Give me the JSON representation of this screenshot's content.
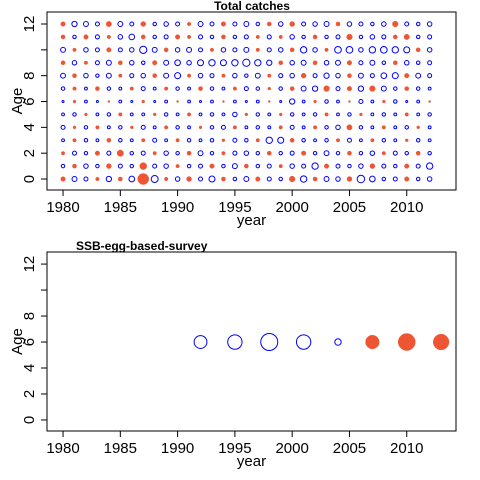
{
  "chart_data": [
    {
      "type": "bubble",
      "title": "Total catches",
      "xlabel": "year",
      "ylabel": "Age",
      "x": [
        1980,
        1981,
        1982,
        1983,
        1984,
        1985,
        1986,
        1987,
        1988,
        1989,
        1990,
        1991,
        1992,
        1993,
        1994,
        1995,
        1996,
        1997,
        1998,
        1999,
        2000,
        2001,
        2002,
        2003,
        2004,
        2005,
        2006,
        2007,
        2008,
        2009,
        2010,
        2011,
        2012
      ],
      "y": [
        0,
        1,
        2,
        3,
        4,
        5,
        6,
        7,
        8,
        9,
        10,
        11,
        12
      ],
      "values": [
        [
          -0.5,
          0.6,
          0.4,
          -0.3,
          0.7,
          -0.4,
          0.8,
          -3.0,
          1.2,
          -0.3,
          0.5,
          -0.6,
          0.4,
          0.9,
          -0.4,
          0.3,
          0.6,
          -0.5,
          0.4,
          0.3,
          -0.8,
          1.0,
          -0.4,
          0.6,
          0.5,
          -0.6,
          1.4,
          0.8,
          0.3,
          0.4,
          -0.5,
          0.3,
          0.5
        ],
        [
          0.3,
          -0.4,
          0.5,
          0.3,
          -0.6,
          0.4,
          0.3,
          -1.2,
          0.4,
          0.5,
          -0.3,
          0.3,
          0.4,
          -0.5,
          0.3,
          0.6,
          -0.4,
          0.3,
          0.4,
          -0.3,
          0.5,
          0.4,
          1.0,
          -0.5,
          0.4,
          0.3,
          0.5,
          -0.6,
          0.4,
          0.3,
          -0.5,
          0.4,
          1.0
        ],
        [
          -0.3,
          0.4,
          0.3,
          -0.5,
          0.4,
          -1.0,
          0.3,
          0.4,
          -0.3,
          0.5,
          0.3,
          -0.4,
          0.6,
          0.3,
          -0.3,
          0.4,
          0.5,
          0.3,
          -0.4,
          0.3,
          0.4,
          -0.5,
          0.3,
          0.6,
          0.3,
          -0.4,
          0.3,
          0.5,
          -0.3,
          0.4,
          0.3,
          -0.4,
          0.3
        ],
        [
          0.2,
          -0.3,
          0.3,
          0.2,
          -0.4,
          0.3,
          0.2,
          -0.3,
          0.4,
          0.2,
          -0.3,
          0.3,
          0.2,
          0.3,
          -0.2,
          0.4,
          0.3,
          -0.3,
          1.0,
          0.9,
          -0.4,
          0.3,
          0.2,
          0.3,
          -0.3,
          0.4,
          0.2,
          -0.3,
          0.3,
          0.2,
          -0.2,
          0.3,
          0.2
        ],
        [
          0.4,
          -0.2,
          0.3,
          -0.3,
          0.2,
          0.3,
          -0.2,
          0.4,
          0.2,
          -0.3,
          0.3,
          0.2,
          -0.2,
          0.3,
          0.4,
          -0.3,
          0.2,
          0.3,
          0.2,
          -0.3,
          0.4,
          0.2,
          -0.3,
          0.3,
          0.5,
          -0.7,
          0.3,
          0.2,
          -0.3,
          0.2,
          0.3,
          -0.2,
          0.2
        ],
        [
          0.2,
          0.3,
          -0.2,
          0.2,
          0.3,
          -0.3,
          0.2,
          0.2,
          -0.2,
          0.3,
          0.2,
          -0.3,
          0.2,
          0.3,
          0.2,
          0.5,
          -0.2,
          0.3,
          0.2,
          -0.2,
          0.3,
          0.2,
          0.3,
          -0.3,
          0.2,
          0.3,
          -0.2,
          0.2,
          0.3,
          0.2,
          -0.3,
          0.2,
          0.3
        ],
        [
          0.1,
          -0.2,
          0.2,
          0.1,
          -0.1,
          0.2,
          0.1,
          -0.2,
          0.1,
          0.2,
          -0.1,
          0.2,
          0.1,
          0.2,
          -0.1,
          0.2,
          0.1,
          0.2,
          -0.1,
          0.1,
          0.7,
          0.2,
          -0.2,
          0.3,
          0.2,
          -0.1,
          0.4,
          0.2,
          -0.2,
          0.3,
          0.1,
          0.2,
          -0.1
        ],
        [
          0.3,
          -0.3,
          0.2,
          -0.4,
          0.3,
          0.2,
          -0.3,
          0.4,
          0.2,
          -0.3,
          0.3,
          0.2,
          -0.4,
          0.3,
          0.2,
          -0.3,
          0.4,
          0.3,
          -0.2,
          0.3,
          -0.4,
          0.6,
          0.7,
          -0.8,
          0.4,
          -0.5,
          0.7,
          -0.8,
          0.6,
          0.3,
          -0.4,
          0.3,
          0.2
        ],
        [
          0.6,
          -0.4,
          0.5,
          0.3,
          0.6,
          -0.3,
          0.4,
          0.5,
          -0.4,
          0.6,
          0.9,
          -0.3,
          0.5,
          0.4,
          -0.3,
          0.5,
          0.3,
          0.6,
          -0.3,
          0.4,
          0.5,
          -0.6,
          0.4,
          0.7,
          0.5,
          -0.4,
          0.6,
          0.4,
          0.8,
          0.9,
          -0.5,
          0.6,
          0.4
        ],
        [
          -0.4,
          0.5,
          -0.3,
          0.4,
          0.6,
          -0.4,
          0.5,
          0.3,
          -0.5,
          0.6,
          0.8,
          0.5,
          0.9,
          1.0,
          0.9,
          1.0,
          1.3,
          1.0,
          0.7,
          -0.4,
          0.5,
          0.6,
          -0.4,
          0.5,
          0.6,
          -0.5,
          0.4,
          0.6,
          0.3,
          -0.4,
          0.5,
          0.3,
          0.4
        ],
        [
          0.6,
          -0.3,
          0.5,
          0.4,
          -0.5,
          0.4,
          0.5,
          1.3,
          0.6,
          -0.4,
          0.5,
          0.6,
          0.4,
          -0.3,
          0.5,
          0.4,
          0.6,
          -0.3,
          0.4,
          0.5,
          -0.4,
          1.0,
          0.5,
          -0.3,
          1.1,
          1.1,
          0.5,
          1.0,
          1.1,
          1.0,
          0.9,
          -0.4,
          0.5
        ],
        [
          -0.4,
          0.3,
          -0.5,
          0.4,
          -0.3,
          0.5,
          0.8,
          -0.4,
          0.3,
          0.4,
          -0.5,
          -0.3,
          0.4,
          0.3,
          -0.4,
          0.3,
          0.4,
          -0.3,
          0.4,
          -0.3,
          0.5,
          0.3,
          -0.4,
          0.3,
          0.4,
          -0.8,
          0.3,
          0.5,
          0.4,
          -0.4,
          -0.7,
          0.3,
          0.4
        ],
        [
          -0.5,
          0.7,
          0.6,
          0.4,
          -0.7,
          0.6,
          0.4,
          -0.6,
          0.3,
          0.5,
          0.4,
          -0.3,
          0.6,
          0.4,
          -0.5,
          0.4,
          0.6,
          0.3,
          -0.4,
          0.5,
          -0.6,
          0.4,
          0.5,
          0.6,
          -0.4,
          0.5,
          0.4,
          0.3,
          0.5,
          -0.8,
          0.4,
          0.3,
          0.5
        ]
      ],
      "colors": {
        "positive": "#0000ff",
        "negative": "#ee5533"
      },
      "xlim": [
        1978.6,
        2014.3
      ],
      "ylim": [
        -0.85,
        12.93
      ],
      "xticks": [
        1980,
        1985,
        1990,
        1995,
        2000,
        2005,
        2010
      ],
      "yticks": [
        0,
        2,
        4,
        6,
        8,
        12
      ],
      "yticks_unlabeled": [
        10
      ]
    },
    {
      "type": "bubble",
      "title": "SSB-egg-based-survey",
      "xlabel": "year",
      "ylabel": "Age",
      "x": [
        1992,
        1995,
        1998,
        2001,
        2004,
        2007,
        2010,
        2013
      ],
      "y": [
        6
      ],
      "values": [
        [
          0.8,
          1.0,
          1.4,
          1.0,
          0.2,
          -0.9,
          -1.4,
          -1.2
        ]
      ],
      "colors": {
        "positive": "#0000ff",
        "negative": "#ee5533"
      },
      "xlim": [
        1978.6,
        2014.3
      ],
      "ylim": [
        -0.85,
        12.93
      ],
      "xticks": [
        1980,
        1985,
        1990,
        1995,
        2000,
        2005,
        2010
      ],
      "yticks": [
        0,
        2,
        4,
        6,
        8,
        12
      ],
      "yticks_unlabeled": [
        10
      ]
    }
  ]
}
